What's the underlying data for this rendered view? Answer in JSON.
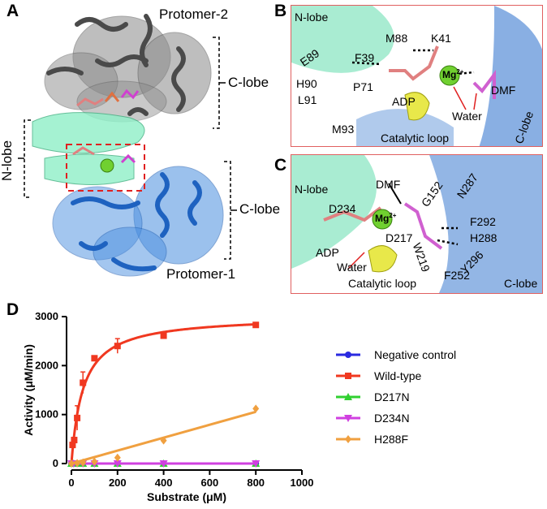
{
  "panels": {
    "a": {
      "letter": "A",
      "labels": {
        "protomer2": "Protomer-2",
        "clobe_top": "C-lobe",
        "nlobe": "N-lobe",
        "clobe_bottom": "C-lobe",
        "protomer1": "Protomer-1"
      }
    },
    "b": {
      "letter": "B",
      "labels": [
        "N-lobe",
        "M88",
        "K41",
        "E89",
        "F39",
        "H90",
        "P71",
        "L91",
        "ADP",
        "M93",
        "Water",
        "DMF",
        "Catalytic loop",
        "C-lobe"
      ],
      "mg": "Mg",
      "mg_sup": "2+"
    },
    "c": {
      "letter": "C",
      "labels": [
        "N-lobe",
        "DMF",
        "G152",
        "N287",
        "D234",
        "F292",
        "H288",
        "D217",
        "ADP",
        "W219",
        "Y296",
        "Water",
        "Catalytic loop",
        "F252",
        "C-lobe"
      ],
      "mg": "Mg",
      "mg_sup": "2+"
    },
    "d": {
      "letter": "D"
    }
  },
  "colors": {
    "gray": "#7a7a7a",
    "blue": "#2f79d8",
    "teal": "#6fe0b4",
    "yellow": "#e8e84a",
    "pink": "#e08080",
    "magenta": "#d040d0",
    "mg": "#70d030",
    "box": "#e06060"
  },
  "chart_data": {
    "type": "scatter",
    "xlabel": "Substrate (μM)",
    "ylabel": "Activity (μM/min)",
    "xlim": [
      0,
      1000
    ],
    "ylim": [
      0,
      3000
    ],
    "xticks": [
      0,
      200,
      400,
      600,
      800,
      1000
    ],
    "yticks": [
      0,
      1000,
      2000,
      3000
    ],
    "legend_position": "right",
    "series": [
      {
        "name": "Negative control",
        "color": "#2a2ae0",
        "marker": "circle",
        "x": [
          0,
          10,
          25,
          50,
          100,
          200,
          400,
          800
        ],
        "y": [
          0,
          0,
          0,
          0,
          0,
          0,
          0,
          0
        ],
        "fit": "flat"
      },
      {
        "name": "Wild-type",
        "color": "#f03820",
        "marker": "square",
        "x": [
          5,
          12,
          25,
          50,
          100,
          200,
          400,
          800
        ],
        "y": [
          380,
          480,
          930,
          1650,
          2150,
          2400,
          2610,
          2830
        ],
        "err": [
          0,
          50,
          250,
          220,
          50,
          150,
          30,
          30
        ],
        "fit": "mm",
        "vmax": 3020,
        "km": 50
      },
      {
        "name": "D217N",
        "color": "#30d030",
        "marker": "triangle-up",
        "x": [
          0,
          10,
          25,
          50,
          100,
          200,
          400,
          800
        ],
        "y": [
          0,
          0,
          0,
          0,
          0,
          0,
          0,
          0
        ],
        "fit": "flat"
      },
      {
        "name": "D234N",
        "color": "#d040e0",
        "marker": "triangle-down",
        "x": [
          0,
          10,
          25,
          50,
          100,
          200,
          400,
          800
        ],
        "y": [
          0,
          0,
          0,
          0,
          0,
          0,
          0,
          0
        ],
        "fit": "flat"
      },
      {
        "name": "H288F",
        "color": "#f0a040",
        "marker": "diamond",
        "x": [
          0,
          25,
          50,
          100,
          200,
          400,
          800
        ],
        "y": [
          0,
          10,
          20,
          40,
          120,
          470,
          1120
        ],
        "fit": "linear",
        "slope": 1.32
      }
    ]
  }
}
